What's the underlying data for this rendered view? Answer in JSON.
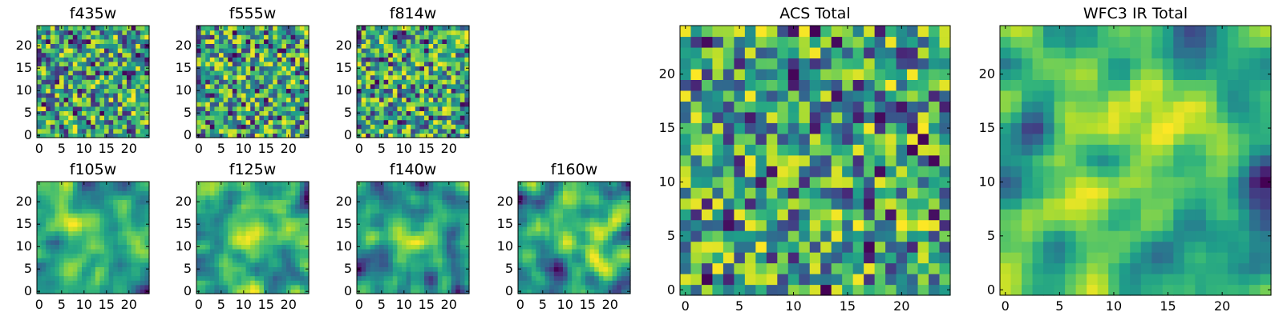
{
  "chart_data": [
    {
      "type": "heatmap",
      "title": "f435w",
      "colormap": "viridis",
      "grid_size": 25,
      "xlim": [
        0,
        24
      ],
      "ylim": [
        0,
        24
      ],
      "xticks": [
        0,
        5,
        10,
        15,
        20
      ],
      "yticks": [
        0,
        5,
        10,
        15,
        20
      ],
      "texture": "noise",
      "seed": 11
    },
    {
      "type": "heatmap",
      "title": "f555w",
      "colormap": "viridis",
      "grid_size": 25,
      "xlim": [
        0,
        24
      ],
      "ylim": [
        0,
        24
      ],
      "xticks": [
        0,
        5,
        10,
        15,
        20
      ],
      "yticks": [
        0,
        5,
        10,
        15,
        20
      ],
      "texture": "noise",
      "seed": 23
    },
    {
      "type": "heatmap",
      "title": "f814w",
      "colormap": "viridis",
      "grid_size": 25,
      "xlim": [
        0,
        24
      ],
      "ylim": [
        0,
        24
      ],
      "xticks": [
        0,
        5,
        10,
        15,
        20
      ],
      "yticks": [
        0,
        5,
        10,
        15,
        20
      ],
      "texture": "noise",
      "seed": 37
    },
    {
      "type": "heatmap",
      "title": "f105w",
      "colormap": "viridis",
      "grid_size": 25,
      "xlim": [
        0,
        24
      ],
      "ylim": [
        0,
        24
      ],
      "xticks": [
        0,
        5,
        10,
        15,
        20
      ],
      "yticks": [
        0,
        5,
        10,
        15,
        20
      ],
      "texture": "smooth",
      "seed": 41
    },
    {
      "type": "heatmap",
      "title": "f125w",
      "colormap": "viridis",
      "grid_size": 25,
      "xlim": [
        0,
        24
      ],
      "ylim": [
        0,
        24
      ],
      "xticks": [
        0,
        5,
        10,
        15,
        20
      ],
      "yticks": [
        0,
        5,
        10,
        15,
        20
      ],
      "texture": "smooth",
      "seed": 53
    },
    {
      "type": "heatmap",
      "title": "f140w",
      "colormap": "viridis",
      "grid_size": 25,
      "xlim": [
        0,
        24
      ],
      "ylim": [
        0,
        24
      ],
      "xticks": [
        0,
        5,
        10,
        15,
        20
      ],
      "yticks": [
        0,
        5,
        10,
        15,
        20
      ],
      "texture": "smooth",
      "seed": 67
    },
    {
      "type": "heatmap",
      "title": "f160w",
      "colormap": "viridis",
      "grid_size": 25,
      "xlim": [
        0,
        24
      ],
      "ylim": [
        0,
        24
      ],
      "xticks": [
        0,
        5,
        10,
        15,
        20
      ],
      "yticks": [
        0,
        5,
        10,
        15,
        20
      ],
      "texture": "smooth",
      "seed": 79
    },
    {
      "type": "heatmap",
      "title": "ACS Total",
      "colormap": "viridis",
      "grid_size": 25,
      "xlim": [
        0,
        24
      ],
      "ylim": [
        0,
        24
      ],
      "xticks": [
        0,
        5,
        10,
        15,
        20
      ],
      "yticks": [
        0,
        5,
        10,
        15,
        20
      ],
      "texture": "noise",
      "seed": 97
    },
    {
      "type": "heatmap",
      "title": "WFC3 IR Total",
      "colormap": "viridis",
      "grid_size": 25,
      "xlim": [
        0,
        24
      ],
      "ylim": [
        0,
        24
      ],
      "xticks": [
        0,
        5,
        10,
        15,
        20
      ],
      "yticks": [
        0,
        5,
        10,
        15,
        20
      ],
      "texture": "smooth",
      "seed": 113
    }
  ]
}
